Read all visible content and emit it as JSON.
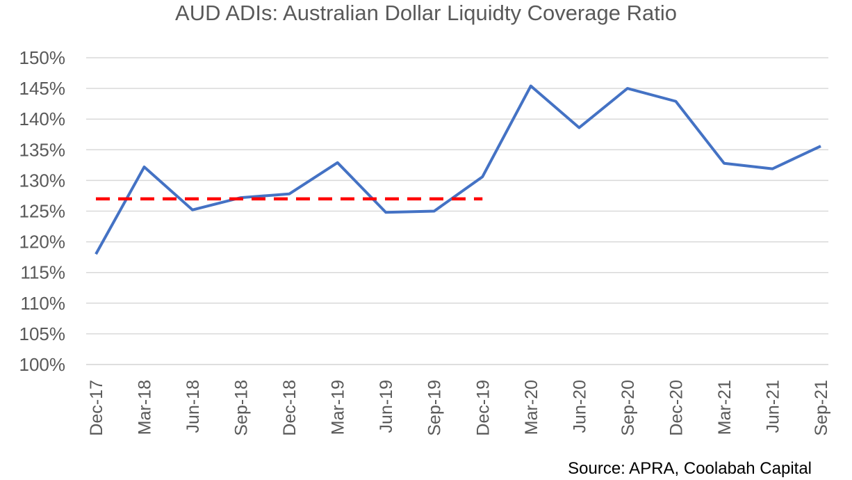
{
  "chart_data": {
    "type": "line",
    "title": "AUD ADIs: Australian Dollar Liquidty Coverage Ratio",
    "source": "Source: APRA, Coolabah Capital",
    "categories": [
      "Dec-17",
      "Mar-18",
      "Jun-18",
      "Sep-18",
      "Dec-18",
      "Mar-19",
      "Jun-19",
      "Sep-19",
      "Dec-19",
      "Mar-20",
      "Jun-20",
      "Sep-20",
      "Dec-20",
      "Mar-21",
      "Jun-21",
      "Sep-21"
    ],
    "series": [
      {
        "values": [
          118.0,
          132.2,
          125.2,
          127.2,
          127.8,
          132.9,
          124.8,
          125.0,
          130.6,
          145.4,
          138.6,
          145.0,
          142.9,
          132.8,
          131.9,
          135.6
        ],
        "color": "#4472C4",
        "style": "solid"
      },
      {
        "values": [
          127.0,
          127.0,
          127.0,
          127.0,
          127.0,
          127.0,
          127.0,
          127.0,
          127.0,
          null,
          null,
          null,
          null,
          null,
          null,
          null
        ],
        "color": "#FF0000",
        "style": "dashed"
      }
    ],
    "yticks": [
      "100%",
      "105%",
      "110%",
      "115%",
      "120%",
      "125%",
      "130%",
      "135%",
      "140%",
      "145%",
      "150%"
    ],
    "ylim": [
      100,
      150
    ],
    "grid": true,
    "legend": "none"
  }
}
